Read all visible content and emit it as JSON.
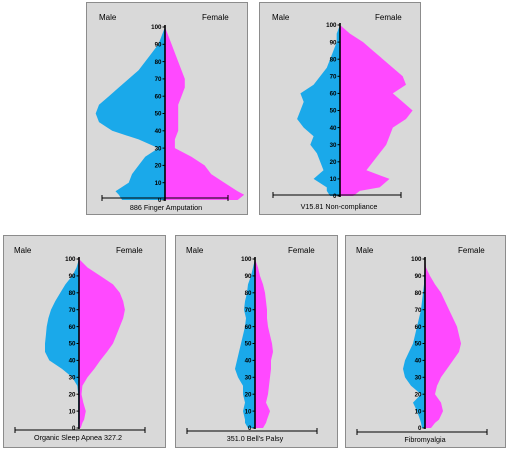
{
  "colors": {
    "panel_bg": "#d9d9d9",
    "panel_border": "#8c8c8c",
    "male": "#1aa9ea",
    "female": "#ff49ff",
    "axis": "#000000"
  },
  "chart_data": [
    {
      "type": "area",
      "title": "886 Finger Amputation",
      "legend": {
        "male": "Male",
        "female": "Female"
      },
      "ylim": [
        0,
        100
      ],
      "yticks": [
        "0",
        "10",
        "20",
        "30",
        "40",
        "50",
        "60",
        "70",
        "80",
        "90",
        "100"
      ],
      "series": [
        {
          "name": "Male",
          "y": [
            0,
            3,
            5,
            10,
            15,
            20,
            25,
            30,
            35,
            40,
            45,
            50,
            55,
            60,
            65,
            70,
            75,
            80,
            85,
            90,
            95,
            100
          ],
          "values": [
            13,
            14,
            15,
            11,
            10,
            8,
            6,
            2,
            8,
            16,
            20,
            21,
            20,
            17,
            14,
            11,
            8,
            6,
            4,
            2,
            1,
            0
          ]
        },
        {
          "name": "Female",
          "y": [
            0,
            3,
            5,
            10,
            15,
            20,
            25,
            30,
            35,
            40,
            45,
            50,
            55,
            60,
            65,
            70,
            75,
            80,
            85,
            90,
            95,
            100
          ],
          "values": [
            22,
            24,
            22,
            18,
            14,
            12,
            8,
            3,
            3,
            4,
            4,
            4,
            4,
            5,
            6,
            6,
            5,
            4,
            3,
            2,
            1,
            0
          ]
        }
      ]
    },
    {
      "type": "area",
      "title": "V15.81 Non-compliance",
      "legend": {
        "male": "Male",
        "female": "Female"
      },
      "ylim": [
        0,
        100
      ],
      "yticks": [
        "0",
        "10",
        "20",
        "30",
        "40",
        "50",
        "60",
        "70",
        "80",
        "90",
        "100"
      ],
      "series": [
        {
          "name": "Male",
          "y": [
            0,
            3,
            5,
            10,
            15,
            20,
            25,
            30,
            35,
            40,
            45,
            50,
            55,
            60,
            65,
            70,
            75,
            80,
            85,
            90,
            95,
            100
          ],
          "values": [
            3,
            4,
            4,
            8,
            5,
            6,
            7,
            9,
            8,
            11,
            13,
            12,
            11,
            12,
            8,
            6,
            4,
            3,
            2,
            1,
            1,
            0
          ]
        },
        {
          "name": "Female",
          "y": [
            0,
            3,
            5,
            10,
            15,
            20,
            25,
            30,
            35,
            40,
            45,
            50,
            55,
            60,
            65,
            70,
            75,
            80,
            85,
            90,
            95,
            100
          ],
          "values": [
            4,
            6,
            12,
            15,
            8,
            10,
            12,
            14,
            15,
            16,
            20,
            22,
            19,
            16,
            20,
            19,
            16,
            13,
            10,
            7,
            3,
            0
          ]
        }
      ]
    },
    {
      "type": "area",
      "title": "Organic Sleep Apnea 327.2",
      "legend": {
        "male": "Male",
        "female": "Female"
      },
      "ylim": [
        0,
        100
      ],
      "yticks": [
        "0",
        "10",
        "20",
        "30",
        "40",
        "50",
        "60",
        "70",
        "80",
        "90",
        "100"
      ],
      "series": [
        {
          "name": "Male",
          "y": [
            0,
            3,
            5,
            10,
            15,
            20,
            25,
            30,
            35,
            40,
            45,
            50,
            55,
            60,
            65,
            70,
            75,
            80,
            85,
            90,
            95,
            100
          ],
          "values": [
            1,
            1,
            1,
            1,
            1,
            1,
            2,
            8,
            20,
            35,
            40,
            40,
            39,
            38,
            36,
            33,
            28,
            22,
            16,
            8,
            3,
            0
          ]
        },
        {
          "name": "Female",
          "y": [
            0,
            3,
            5,
            10,
            15,
            20,
            25,
            30,
            35,
            40,
            45,
            50,
            55,
            60,
            65,
            70,
            75,
            80,
            85,
            90,
            95,
            100
          ],
          "values": [
            2,
            4,
            6,
            8,
            5,
            3,
            4,
            10,
            18,
            25,
            33,
            40,
            44,
            48,
            52,
            54,
            52,
            48,
            40,
            25,
            10,
            0
          ]
        }
      ]
    },
    {
      "type": "area",
      "title": "351.0 Bell's Palsy",
      "legend": {
        "male": "Male",
        "female": "Female"
      },
      "ylim": [
        0,
        100
      ],
      "yticks": [
        "0",
        "10",
        "20",
        "30",
        "40",
        "50",
        "60",
        "70",
        "80",
        "90",
        "100"
      ],
      "series": [
        {
          "name": "Male",
          "y": [
            0,
            3,
            5,
            10,
            15,
            20,
            25,
            30,
            35,
            40,
            45,
            50,
            55,
            60,
            65,
            70,
            75,
            80,
            85,
            90,
            95,
            100
          ],
          "values": [
            7,
            10,
            10,
            12,
            10,
            12,
            12,
            17,
            20,
            18,
            16,
            14,
            12,
            10,
            9,
            11,
            10,
            8,
            7,
            4,
            2,
            0
          ]
        },
        {
          "name": "Female",
          "y": [
            0,
            3,
            5,
            10,
            15,
            20,
            25,
            30,
            35,
            40,
            45,
            50,
            55,
            60,
            65,
            70,
            75,
            80,
            85,
            90,
            95,
            100
          ],
          "values": [
            8,
            11,
            12,
            15,
            11,
            13,
            14,
            15,
            16,
            16,
            18,
            17,
            15,
            13,
            12,
            12,
            11,
            10,
            8,
            5,
            3,
            0
          ]
        }
      ]
    },
    {
      "type": "area",
      "title": "Fibromyalgia",
      "legend": {
        "male": "Male",
        "female": "Female"
      },
      "ylim": [
        0,
        100
      ],
      "yticks": [
        "0",
        "10",
        "20",
        "30",
        "40",
        "50",
        "60",
        "70",
        "80",
        "90",
        "100"
      ],
      "series": [
        {
          "name": "Male",
          "y": [
            0,
            3,
            5,
            10,
            15,
            20,
            25,
            30,
            35,
            40,
            45,
            50,
            55,
            60,
            65,
            70,
            75,
            80,
            85,
            90,
            95,
            100
          ],
          "values": [
            3,
            4,
            5,
            8,
            12,
            4,
            14,
            20,
            22,
            20,
            16,
            12,
            10,
            8,
            6,
            4,
            3,
            2,
            1,
            1,
            0,
            0
          ]
        },
        {
          "name": "Female",
          "y": [
            0,
            3,
            5,
            10,
            15,
            20,
            25,
            30,
            35,
            40,
            45,
            50,
            55,
            60,
            65,
            70,
            75,
            80,
            85,
            90,
            95,
            100
          ],
          "values": [
            6,
            10,
            14,
            18,
            16,
            10,
            12,
            16,
            22,
            28,
            34,
            36,
            34,
            32,
            28,
            24,
            20,
            16,
            10,
            5,
            1,
            0
          ]
        }
      ]
    }
  ]
}
